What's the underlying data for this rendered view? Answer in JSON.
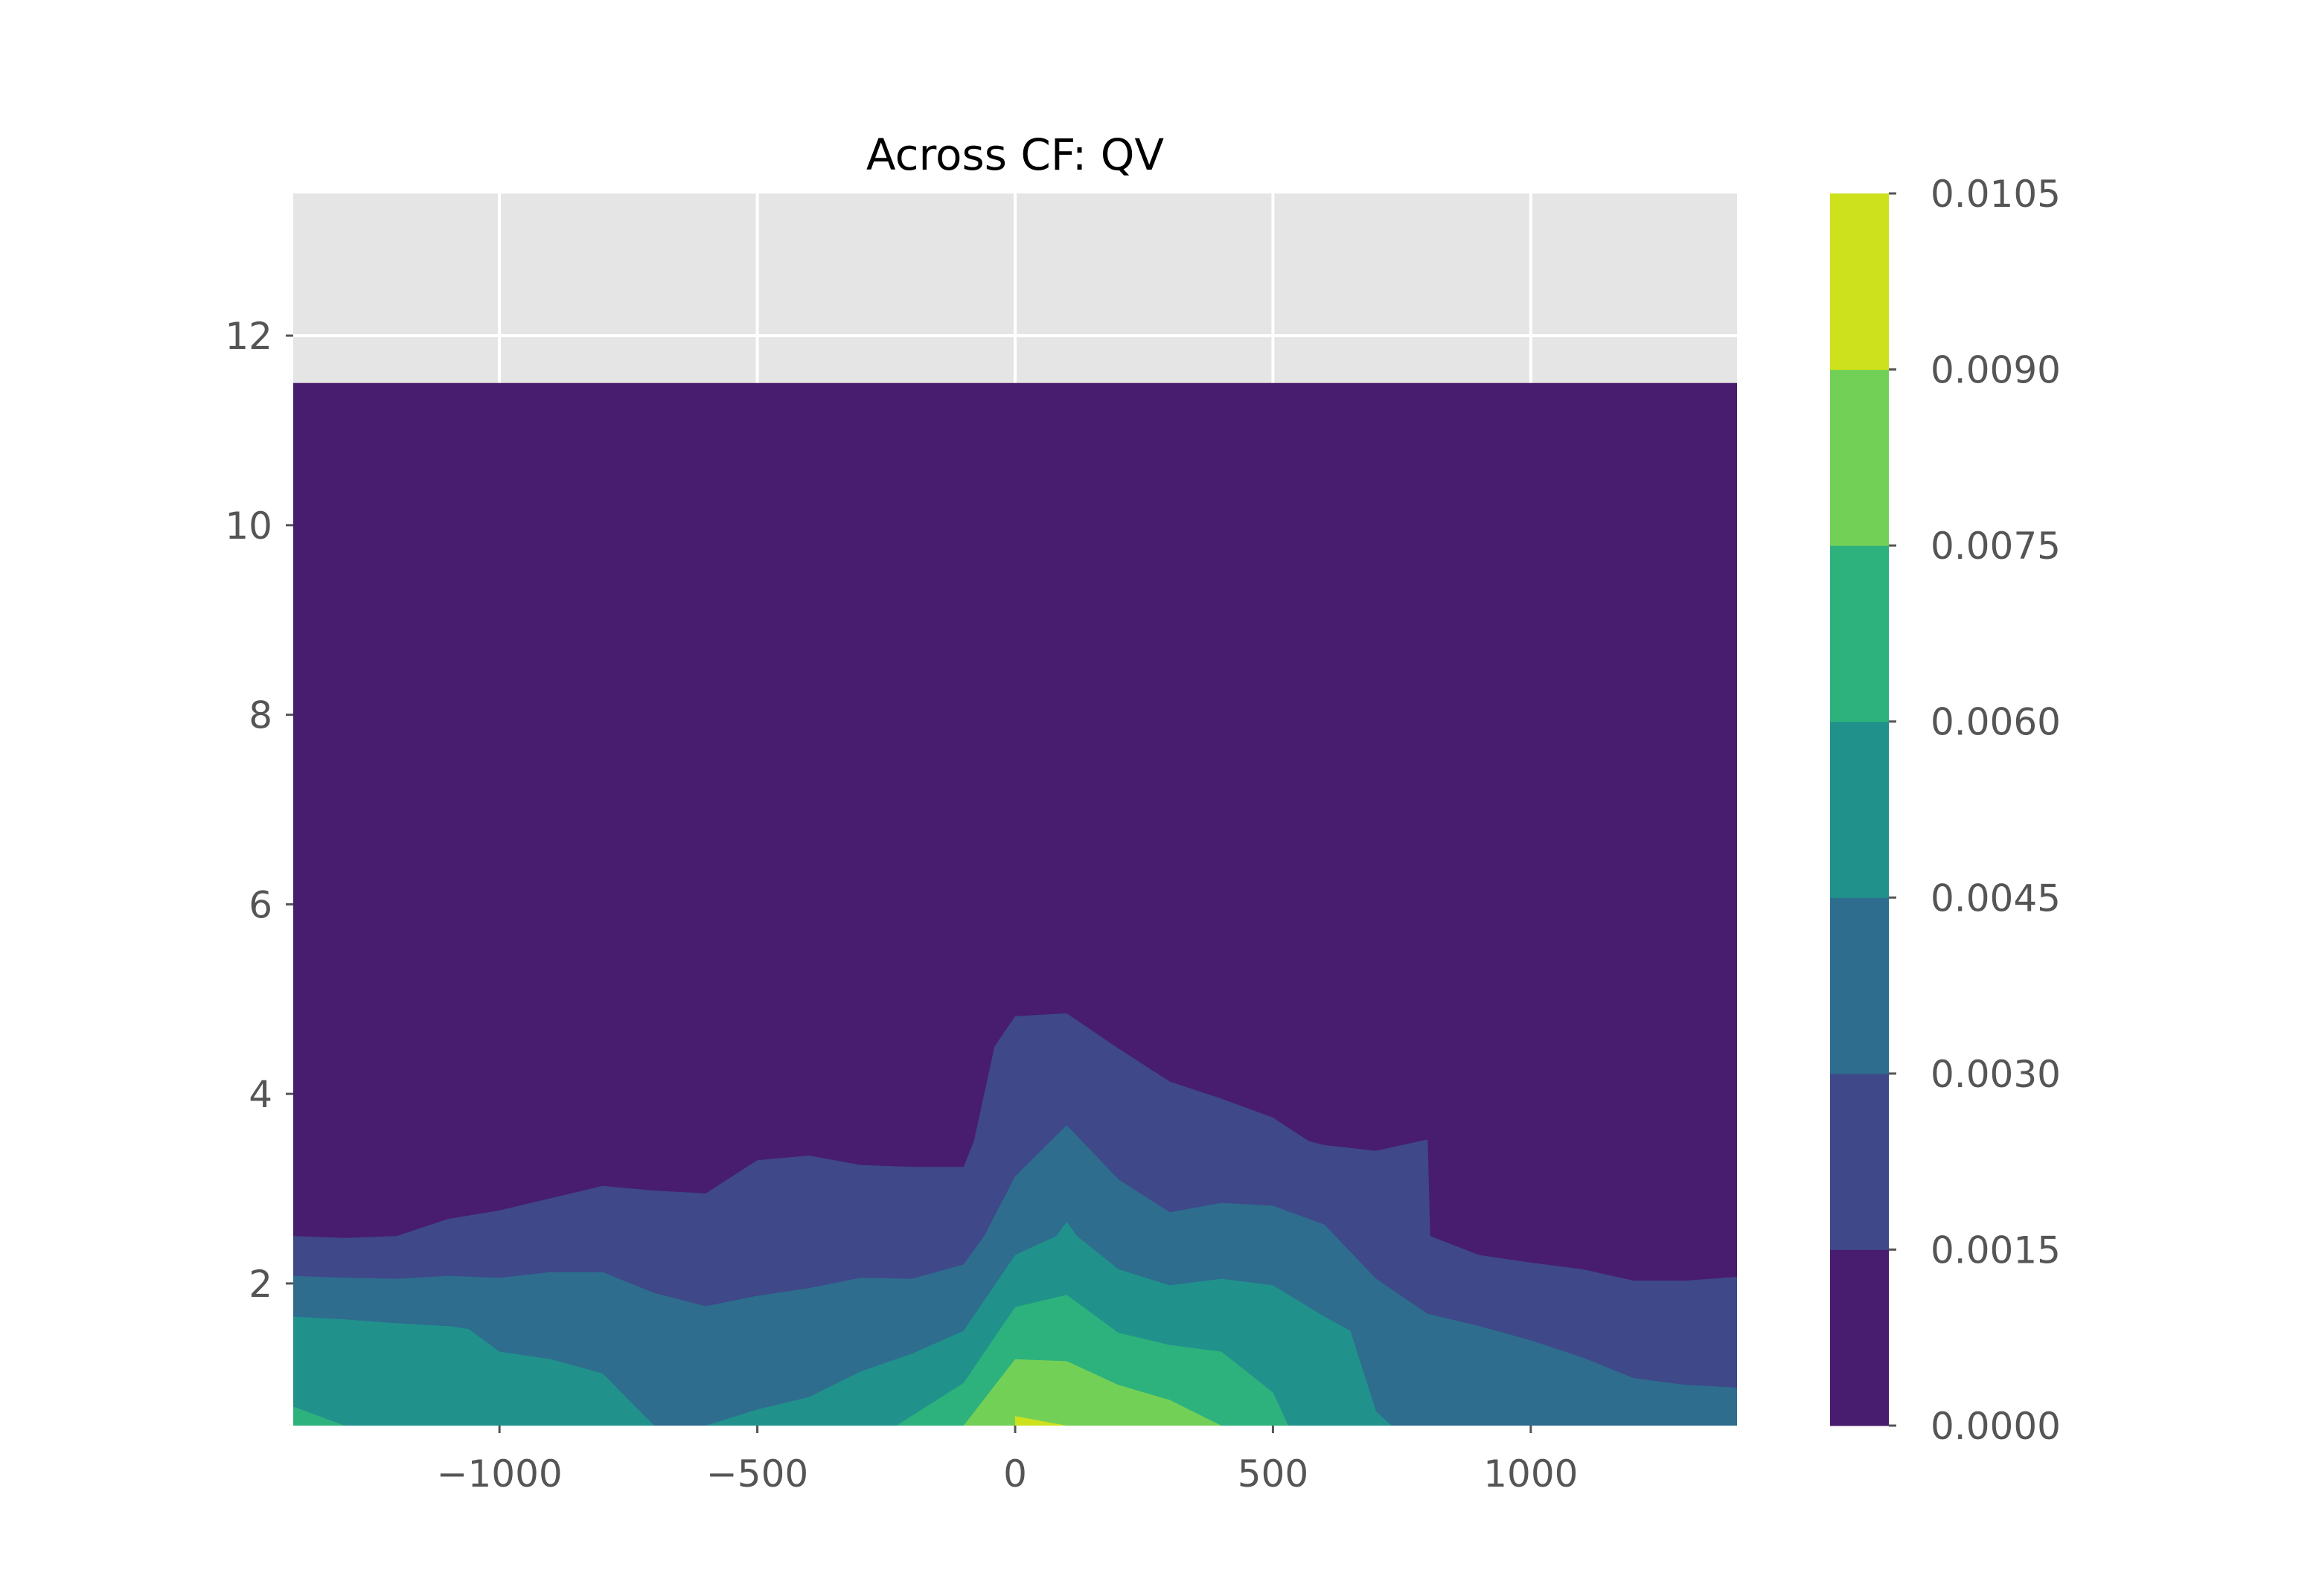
{
  "chart_data": {
    "type": "contourf",
    "title": "Across CF: QV",
    "xlabel": "",
    "ylabel": "",
    "xlim": [
      -1400,
      1400
    ],
    "ylim": [
      0.5,
      13.5
    ],
    "x_ticks": [
      -1000,
      -500,
      0,
      500,
      1000
    ],
    "x_tick_labels": [
      "−1000",
      "−500",
      "0",
      "500",
      "1000"
    ],
    "y_ticks": [
      2,
      4,
      6,
      8,
      10,
      12
    ],
    "y_tick_labels": [
      "2",
      "4",
      "6",
      "8",
      "10",
      "12"
    ],
    "grid": true,
    "axes_background": "#e5e5e5",
    "data_top": 11.5,
    "levels": [
      0.0,
      0.0015,
      0.003,
      0.0045,
      0.006,
      0.0075,
      0.009,
      0.0105
    ],
    "colorbar_tick_labels": [
      "0.0000",
      "0.0015",
      "0.0030",
      "0.0045",
      "0.0060",
      "0.0075",
      "0.0090",
      "0.0105"
    ],
    "band_colors": [
      "#481c6e",
      "#3f4889",
      "#2e6d8e",
      "#21918c",
      "#2db27d",
      "#73d056",
      "#cde11d"
    ],
    "contour_boundaries": [
      {
        "level": 0.0015,
        "points": [
          [
            -1400,
            2.5
          ],
          [
            -1300,
            2.48
          ],
          [
            -1200,
            2.5
          ],
          [
            -1100,
            2.68
          ],
          [
            -1000,
            2.77
          ],
          [
            -900,
            2.9
          ],
          [
            -800,
            3.03
          ],
          [
            -700,
            2.98
          ],
          [
            -600,
            2.95
          ],
          [
            -500,
            3.3
          ],
          [
            -400,
            3.35
          ],
          [
            -300,
            3.25
          ],
          [
            -200,
            3.23
          ],
          [
            -100,
            3.23
          ],
          [
            -80,
            3.5
          ],
          [
            -40,
            4.5
          ],
          [
            0,
            4.82
          ],
          [
            100,
            4.85
          ],
          [
            200,
            4.48
          ],
          [
            300,
            4.13
          ],
          [
            400,
            3.95
          ],
          [
            500,
            3.75
          ],
          [
            570,
            3.5
          ],
          [
            600,
            3.46
          ],
          [
            700,
            3.4
          ],
          [
            800,
            3.52
          ],
          [
            805,
            2.5
          ],
          [
            900,
            2.3
          ],
          [
            1000,
            2.22
          ],
          [
            1100,
            2.15
          ],
          [
            1200,
            2.03
          ],
          [
            1300,
            2.03
          ],
          [
            1400,
            2.07
          ]
        ]
      },
      {
        "level": 0.003,
        "points": [
          [
            -1400,
            2.08
          ],
          [
            -1300,
            2.06
          ],
          [
            -1200,
            2.05
          ],
          [
            -1100,
            2.08
          ],
          [
            -1000,
            2.06
          ],
          [
            -900,
            2.12
          ],
          [
            -800,
            2.12
          ],
          [
            -700,
            1.9
          ],
          [
            -600,
            1.76
          ],
          [
            -500,
            1.87
          ],
          [
            -400,
            1.95
          ],
          [
            -300,
            2.06
          ],
          [
            -200,
            2.05
          ],
          [
            -100,
            2.2
          ],
          [
            -60,
            2.5
          ],
          [
            0,
            3.13
          ],
          [
            100,
            3.67
          ],
          [
            200,
            3.1
          ],
          [
            300,
            2.75
          ],
          [
            400,
            2.85
          ],
          [
            500,
            2.82
          ],
          [
            600,
            2.62
          ],
          [
            700,
            2.05
          ],
          [
            800,
            1.68
          ],
          [
            900,
            1.55
          ],
          [
            1000,
            1.4
          ],
          [
            1100,
            1.22
          ],
          [
            1200,
            1.0
          ],
          [
            1300,
            0.93
          ],
          [
            1400,
            0.9
          ]
        ]
      },
      {
        "level": 0.0045,
        "points": [
          [
            -1400,
            1.65
          ],
          [
            -1300,
            1.62
          ],
          [
            -1200,
            1.58
          ],
          [
            -1100,
            1.55
          ],
          [
            -1060,
            1.52
          ],
          [
            -1000,
            1.28
          ],
          [
            -900,
            1.2
          ],
          [
            -800,
            1.05
          ],
          [
            -700,
            0.5
          ],
          [
            -600,
            0.5
          ],
          [
            -500,
            0.67
          ],
          [
            -400,
            0.8
          ],
          [
            -300,
            1.07
          ],
          [
            -200,
            1.26
          ],
          [
            -100,
            1.5
          ],
          [
            0,
            2.3
          ],
          [
            80,
            2.5
          ],
          [
            100,
            2.65
          ],
          [
            120,
            2.5
          ],
          [
            200,
            2.15
          ],
          [
            300,
            1.98
          ],
          [
            400,
            2.05
          ],
          [
            500,
            1.98
          ],
          [
            600,
            1.65
          ],
          [
            650,
            1.5
          ],
          [
            700,
            0.65
          ],
          [
            730,
            0.5
          ],
          [
            1400,
            0.5
          ]
        ]
      },
      {
        "level": 0.006,
        "points": [
          [
            -1400,
            0.7
          ],
          [
            -1300,
            0.5
          ],
          [
            -230,
            0.5
          ],
          [
            -100,
            0.95
          ],
          [
            0,
            1.75
          ],
          [
            100,
            1.88
          ],
          [
            200,
            1.48
          ],
          [
            300,
            1.35
          ],
          [
            400,
            1.28
          ],
          [
            500,
            0.85
          ],
          [
            530,
            0.5
          ],
          [
            1400,
            0.5
          ]
        ]
      },
      {
        "level": 0.0075,
        "points": [
          [
            -100,
            0.5
          ],
          [
            0,
            1.2
          ],
          [
            100,
            1.18
          ],
          [
            200,
            0.93
          ],
          [
            300,
            0.77
          ],
          [
            400,
            0.5
          ]
        ]
      },
      {
        "level": 0.009,
        "points": [
          [
            0,
            0.5
          ],
          [
            0,
            0.6
          ],
          [
            100,
            0.5
          ]
        ]
      }
    ]
  }
}
